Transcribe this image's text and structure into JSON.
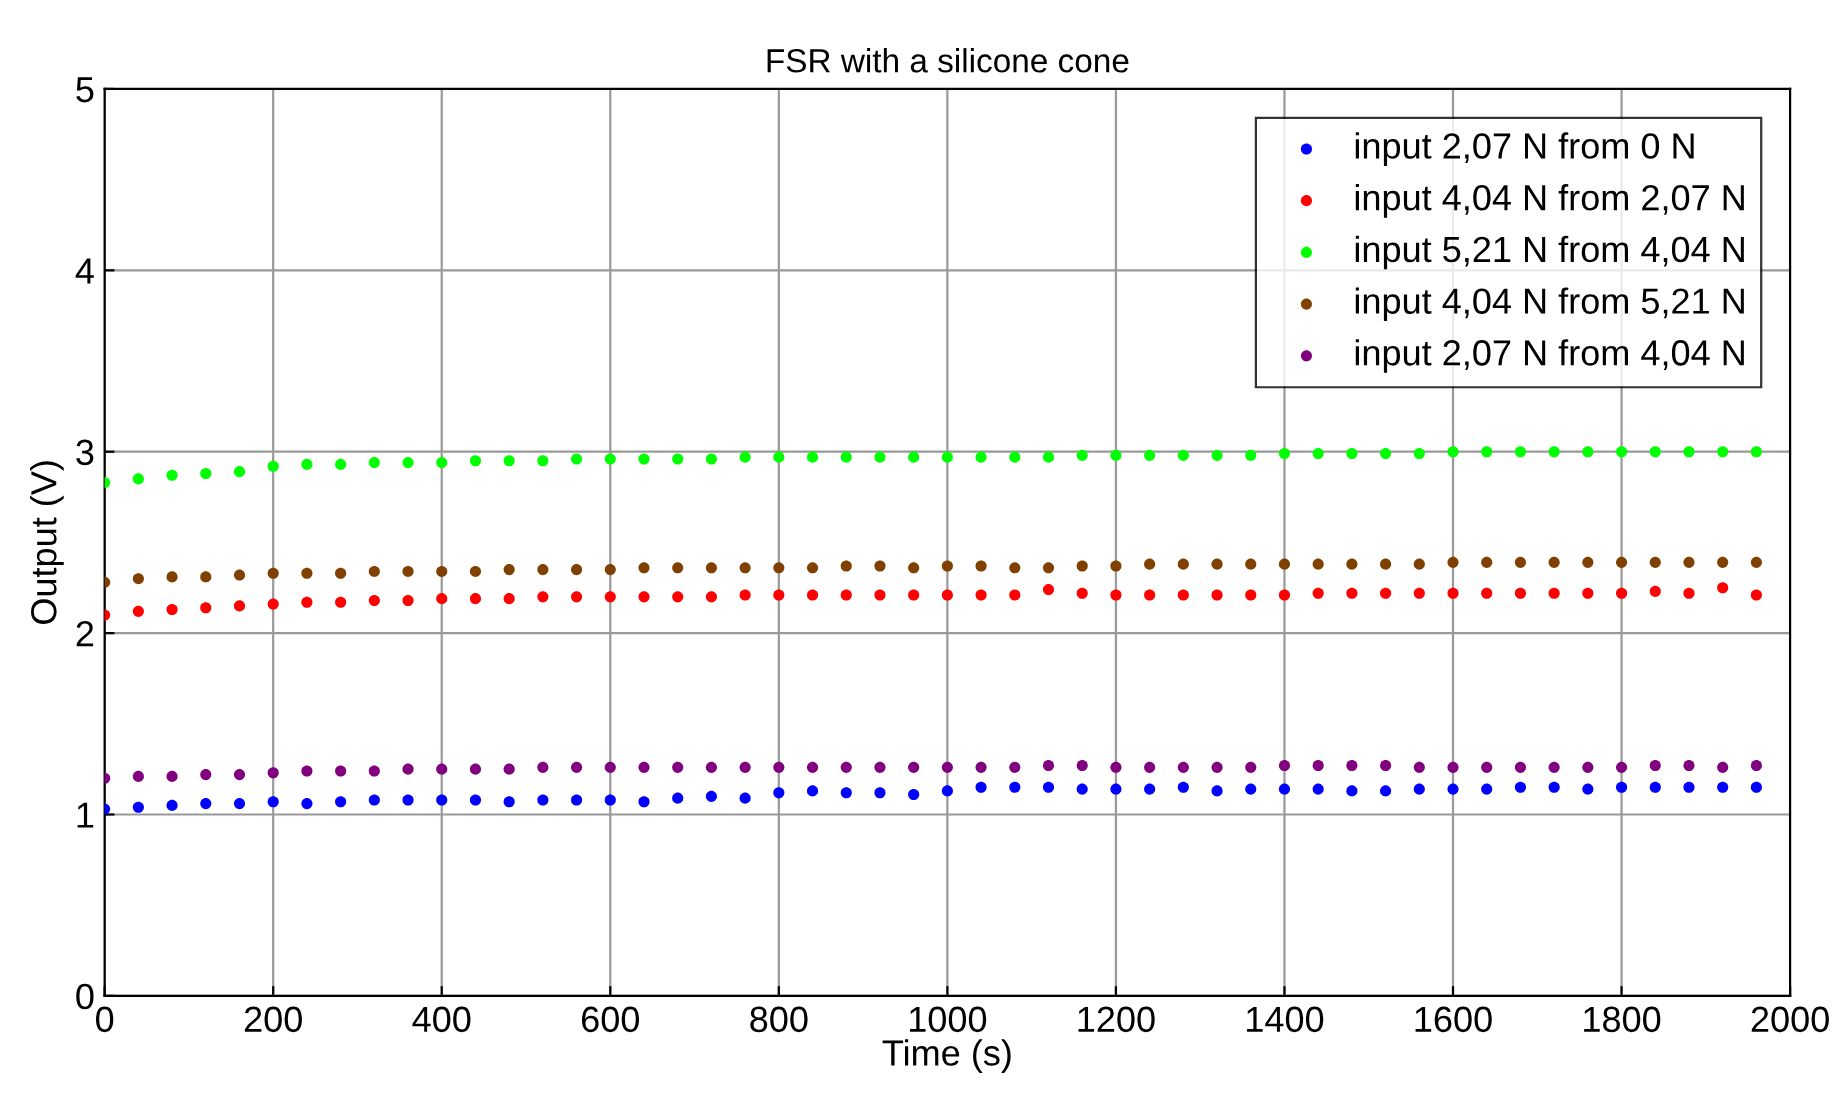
{
  "chart_data": {
    "type": "scatter",
    "title": "FSR with a silicone cone",
    "xlabel": "Time (s)",
    "ylabel": "Output (V)",
    "x": [
      0,
      40,
      80,
      120,
      160,
      200,
      240,
      280,
      320,
      360,
      400,
      440,
      480,
      520,
      560,
      600,
      640,
      680,
      720,
      760,
      800,
      840,
      880,
      920,
      960,
      1000,
      1040,
      1080,
      1120,
      1160,
      1200,
      1240,
      1280,
      1320,
      1360,
      1400,
      1440,
      1480,
      1520,
      1560,
      1600,
      1640,
      1680,
      1720,
      1760,
      1800,
      1840,
      1880,
      1920,
      1960
    ],
    "xlim": [
      0,
      2000
    ],
    "xticks": [
      0,
      200,
      400,
      600,
      800,
      1000,
      1200,
      1400,
      1600,
      1800,
      2000
    ],
    "ylim": [
      0,
      5
    ],
    "yticks": [
      0,
      1,
      2,
      3,
      4,
      5
    ],
    "grid": true,
    "legend": "top right",
    "marker": "circle",
    "series": [
      {
        "name": "input 2,07 N from 0 N",
        "color": "#0000ff",
        "values": [
          1.03,
          1.04,
          1.05,
          1.06,
          1.06,
          1.07,
          1.06,
          1.07,
          1.08,
          1.08,
          1.08,
          1.08,
          1.07,
          1.08,
          1.08,
          1.08,
          1.07,
          1.09,
          1.1,
          1.09,
          1.12,
          1.13,
          1.12,
          1.12,
          1.11,
          1.13,
          1.15,
          1.15,
          1.15,
          1.14,
          1.14,
          1.14,
          1.15,
          1.13,
          1.14,
          1.14,
          1.14,
          1.13,
          1.13,
          1.14,
          1.14,
          1.14,
          1.15,
          1.15,
          1.14,
          1.15,
          1.15,
          1.15,
          1.15,
          1.15
        ]
      },
      {
        "name": "input 4,04 N from 2,07 N",
        "color": "#ff0000",
        "values": [
          2.1,
          2.12,
          2.13,
          2.14,
          2.15,
          2.16,
          2.17,
          2.17,
          2.18,
          2.18,
          2.19,
          2.19,
          2.19,
          2.2,
          2.2,
          2.2,
          2.2,
          2.2,
          2.2,
          2.21,
          2.21,
          2.21,
          2.21,
          2.21,
          2.21,
          2.21,
          2.21,
          2.21,
          2.24,
          2.22,
          2.21,
          2.21,
          2.21,
          2.21,
          2.21,
          2.21,
          2.22,
          2.22,
          2.22,
          2.22,
          2.22,
          2.22,
          2.22,
          2.22,
          2.22,
          2.22,
          2.23,
          2.22,
          2.25,
          2.21
        ]
      },
      {
        "name": "input 5,21 N from 4,04 N",
        "color": "#00ff00",
        "values": [
          2.83,
          2.85,
          2.87,
          2.88,
          2.89,
          2.92,
          2.93,
          2.93,
          2.94,
          2.94,
          2.94,
          2.95,
          2.95,
          2.95,
          2.96,
          2.96,
          2.96,
          2.96,
          2.96,
          2.97,
          2.97,
          2.97,
          2.97,
          2.97,
          2.97,
          2.97,
          2.97,
          2.97,
          2.97,
          2.98,
          2.98,
          2.98,
          2.98,
          2.98,
          2.98,
          2.99,
          2.99,
          2.99,
          2.99,
          2.99,
          3.0,
          3.0,
          3.0,
          3.0,
          3.0,
          3.0,
          3.0,
          3.0,
          3.0,
          3.0
        ]
      },
      {
        "name": "input 4,04 N from 5,21 N",
        "color": "#804000",
        "values": [
          2.28,
          2.3,
          2.31,
          2.31,
          2.32,
          2.33,
          2.33,
          2.33,
          2.34,
          2.34,
          2.34,
          2.34,
          2.35,
          2.35,
          2.35,
          2.35,
          2.36,
          2.36,
          2.36,
          2.36,
          2.36,
          2.36,
          2.37,
          2.37,
          2.36,
          2.37,
          2.37,
          2.36,
          2.36,
          2.37,
          2.37,
          2.38,
          2.38,
          2.38,
          2.38,
          2.38,
          2.38,
          2.38,
          2.38,
          2.38,
          2.39,
          2.39,
          2.39,
          2.39,
          2.39,
          2.39,
          2.39,
          2.39,
          2.39,
          2.39
        ]
      },
      {
        "name": "input 2,07 N from 4,04 N",
        "color": "#800080",
        "values": [
          1.2,
          1.21,
          1.21,
          1.22,
          1.22,
          1.23,
          1.24,
          1.24,
          1.24,
          1.25,
          1.25,
          1.25,
          1.25,
          1.26,
          1.26,
          1.26,
          1.26,
          1.26,
          1.26,
          1.26,
          1.26,
          1.26,
          1.26,
          1.26,
          1.26,
          1.26,
          1.26,
          1.26,
          1.27,
          1.27,
          1.26,
          1.26,
          1.26,
          1.26,
          1.26,
          1.27,
          1.27,
          1.27,
          1.27,
          1.26,
          1.26,
          1.26,
          1.26,
          1.26,
          1.26,
          1.26,
          1.27,
          1.27,
          1.26,
          1.27
        ]
      }
    ]
  }
}
